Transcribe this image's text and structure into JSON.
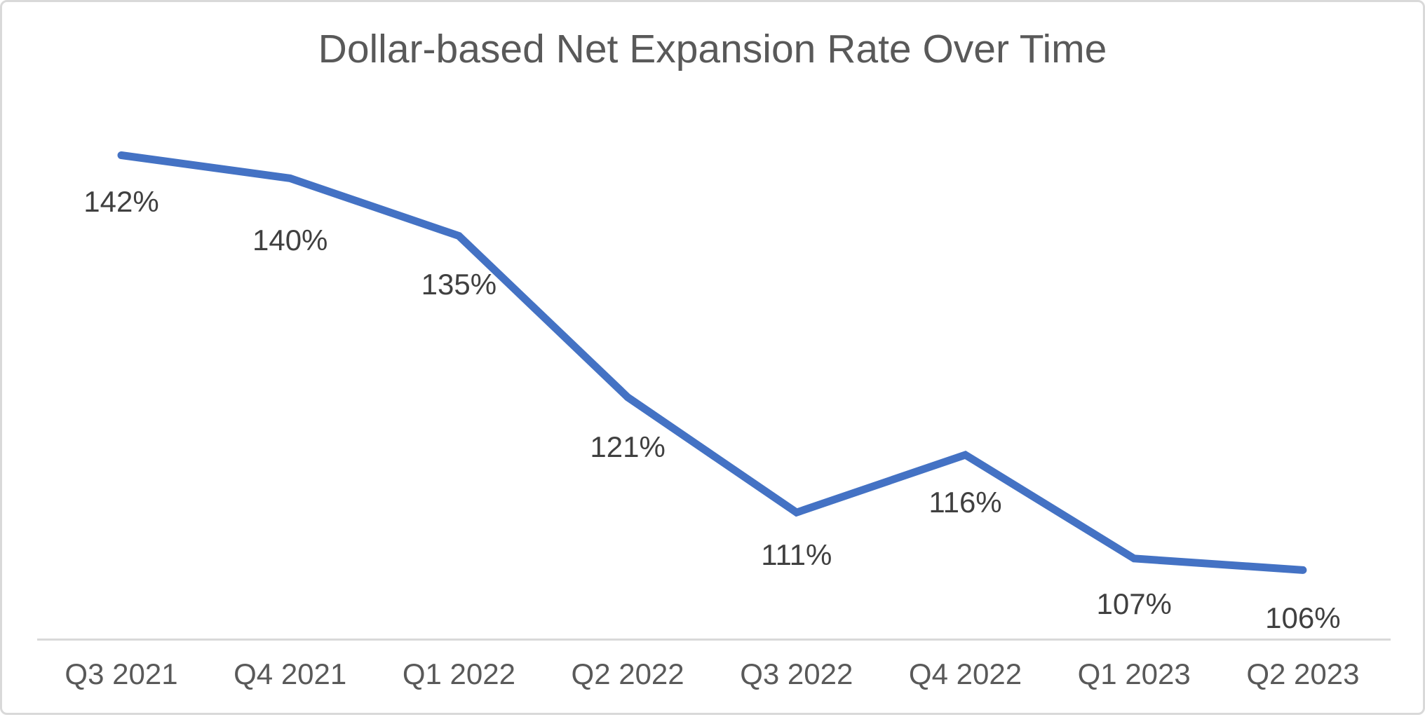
{
  "chart_data": {
    "type": "line",
    "title": "Dollar-based Net Expansion Rate Over Time",
    "categories": [
      "Q3 2021",
      "Q4 2021",
      "Q1 2022",
      "Q2 2022",
      "Q3 2022",
      "Q4 2022",
      "Q1 2023",
      "Q2 2023"
    ],
    "values": [
      142,
      140,
      135,
      121,
      111,
      116,
      107,
      106
    ],
    "data_labels": [
      "142%",
      "140%",
      "135%",
      "121%",
      "111%",
      "116%",
      "107%",
      "106%"
    ],
    "xlabel": "",
    "ylabel": "",
    "ylim": [
      100,
      145
    ],
    "grid": false,
    "legend": false,
    "data_labels_position": "below",
    "colors": {
      "line": "#4472C4",
      "title_text": "#595959",
      "data_label_text": "#404040",
      "axis_label_text": "#595959",
      "axis_line": "#D9D9D9",
      "frame_border": "#D9D9D9",
      "background": "#FFFFFF"
    }
  }
}
